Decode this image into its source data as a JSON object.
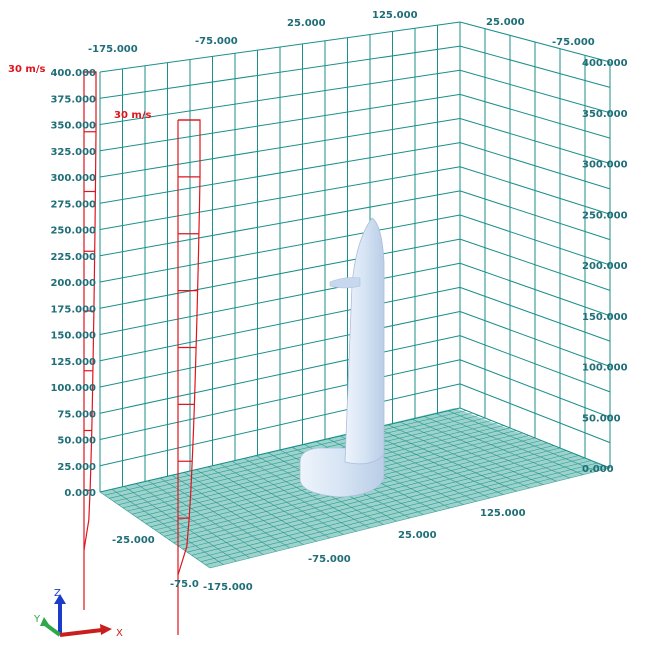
{
  "scene": {
    "left_axis_ticks": [
      "0.000",
      "25.000",
      "50.000",
      "75.000",
      "100.000",
      "125.000",
      "150.000",
      "175.000",
      "200.000",
      "225.000",
      "250.000",
      "275.000",
      "300.000",
      "325.000",
      "350.000",
      "375.000",
      "400.000"
    ],
    "right_axis_ticks": [
      "0.000",
      "50.000",
      "100.000",
      "150.000",
      "200.000",
      "250.000",
      "300.000",
      "350.000",
      "400.000"
    ],
    "top_axis_ticks": [
      "-175.000",
      "-75.000",
      "25.000",
      "125.000",
      "25.000",
      "-75.000"
    ],
    "floor_front_ticks": [
      "-175.000",
      "-75.000",
      "25.000",
      "125.000"
    ],
    "floor_left_ticks": [
      "-75.0",
      "-25.000"
    ],
    "velocity_label_outer": "30 m/s",
    "velocity_label_inner": "30 m/s",
    "colors": {
      "grid": "#1a8f8a",
      "floor": "#7fc7c0",
      "profile": "#e0141e",
      "model": "#d8e6f5",
      "tick_text": "#1f6e78"
    }
  },
  "axis_triad": {
    "z": "Z",
    "y": "Y",
    "x": "X"
  }
}
